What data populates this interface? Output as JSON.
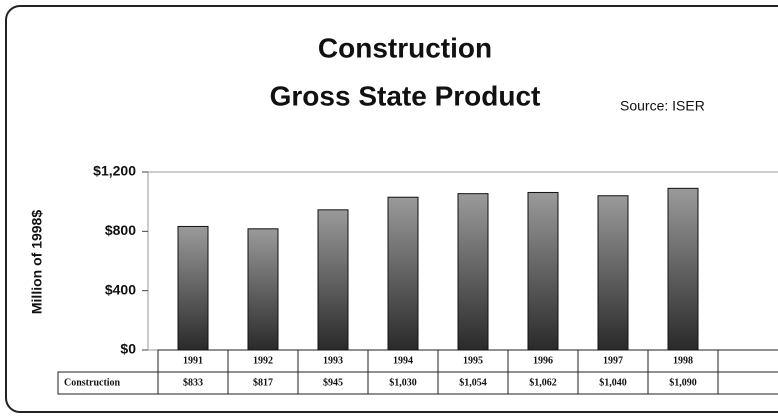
{
  "chart_data": {
    "type": "bar",
    "title": [
      "Construction",
      "Gross State Product"
    ],
    "annotation": "Source: ISER",
    "ylabel": "Million of 1998$",
    "categories": [
      "1991",
      "1992",
      "1993",
      "1994",
      "1995",
      "1996",
      "1997",
      "1998"
    ],
    "series": [
      {
        "name": "Construction",
        "color": "#555555",
        "values": [
          833,
          817,
          945,
          1030,
          1054,
          1062,
          1040,
          1090
        ],
        "value_labels": [
          "$833",
          "$817",
          "$945",
          "$1,030",
          "$1,054",
          "$1,062",
          "$1,040",
          "$1,090"
        ]
      }
    ],
    "ylim": [
      0,
      1200
    ],
    "yticks": [
      {
        "value": 0,
        "label": "$0"
      },
      {
        "value": 400,
        "label": "$400"
      },
      {
        "value": 800,
        "label": "$800"
      },
      {
        "value": 1200,
        "label": "$1,200"
      }
    ],
    "grid": false
  }
}
